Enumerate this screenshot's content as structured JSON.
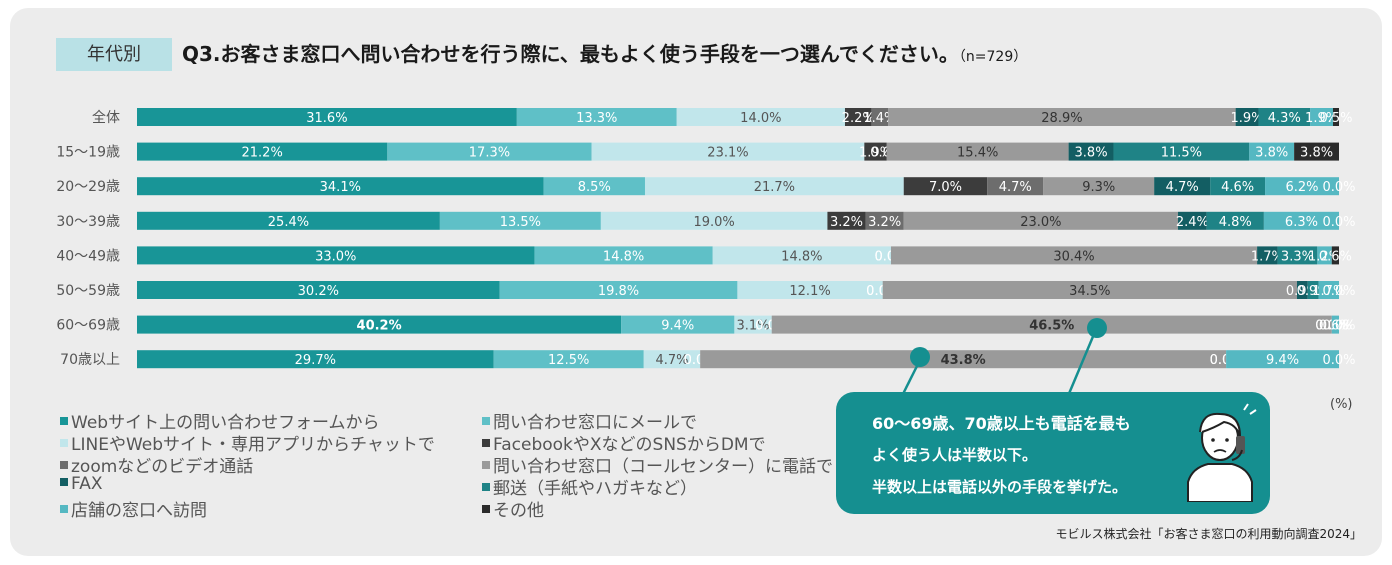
{
  "header": {
    "badge": "年代別",
    "title": "Q3.お客さま窓口へ問い合わせを行う際に、最もよく使う手段を一つ選んでください。",
    "n": "（n=729）"
  },
  "chart_data": {
    "type": "stacked-bar-horizontal",
    "title": "Q3.お客さま窓口へ問い合わせを行う際に、最もよく使う手段を一つ選んでください。（n=729）",
    "unit": "(%)",
    "xlim": [
      0,
      100
    ],
    "categories": [
      "全体",
      "15～19歳",
      "20～29歳",
      "30～39歳",
      "40～49歳",
      "50～59歳",
      "60～69歳",
      "70歳以上"
    ],
    "series": [
      {
        "name": "Webサイト上の問い合わせフォームから",
        "color": "#189597",
        "labelColor": "#ffffff",
        "values": [
          31.6,
          21.2,
          34.1,
          25.4,
          33.0,
          30.2,
          40.2,
          29.7
        ]
      },
      {
        "name": "問い合わせ窓口にメールで",
        "color": "#5fc0c7",
        "labelColor": "#ffffff",
        "values": [
          13.3,
          17.3,
          8.5,
          13.5,
          14.8,
          19.8,
          9.4,
          12.5
        ]
      },
      {
        "name": "LINEやWebサイト・専用アプリからチャットで",
        "color": "#c1e6eb",
        "labelColor": "#555555",
        "values": [
          14.0,
          23.1,
          21.7,
          19.0,
          14.8,
          12.1,
          3.1,
          4.7
        ]
      },
      {
        "name": "FacebookやXなどのSNSからDMで",
        "color": "#3c3c3c",
        "labelColor": "#ffffff",
        "values": [
          2.2,
          1.9,
          7.0,
          3.2,
          0.0,
          0.0,
          0.0,
          0.0
        ]
      },
      {
        "name": "zoomなどのビデオ通話",
        "color": "#6d6d6d",
        "labelColor": "#ffffff",
        "values": [
          1.4,
          0.0,
          4.7,
          3.2,
          0.0,
          0.0,
          0.0,
          0.0
        ]
      },
      {
        "name": "問い合わせ窓口（コールセンター）に電話で",
        "color": "#9a9a9a",
        "labelColor": "#333333",
        "values": [
          28.9,
          15.4,
          9.3,
          23.0,
          30.4,
          34.5,
          46.5,
          43.8
        ]
      },
      {
        "name": "FAX",
        "color": "#135e63",
        "labelColor": "#ffffff",
        "values": [
          1.9,
          3.8,
          4.7,
          2.4,
          1.7,
          0.9,
          0.0,
          0.0
        ]
      },
      {
        "name": "郵送（手紙やハガキなど）",
        "color": "#1f8386",
        "labelColor": "#ffffff",
        "values": [
          4.3,
          11.5,
          4.6,
          4.8,
          3.3,
          0.9,
          0.0,
          0.0
        ]
      },
      {
        "name": "店舗の窓口へ訪問",
        "color": "#55b8c2",
        "labelColor": "#ffffff",
        "values": [
          1.9,
          3.8,
          6.2,
          6.3,
          1.2,
          1.7,
          0.6,
          9.4
        ]
      },
      {
        "name": "その他",
        "color": "#2b2b2b",
        "labelColor": "#ffffff",
        "values": [
          0.5,
          3.8,
          0.0,
          0.0,
          0.6,
          0.0,
          0.0,
          0.0
        ]
      }
    ]
  },
  "callout": {
    "line1": "60～69歳、70歳以上も電話を最も",
    "line2": "よく使う人は半数以下。",
    "line3": "半数以上は電話以外の手段を挙げた。"
  },
  "source": "モビルス株式会社「お客さま窓口の利用動向調査2024」"
}
